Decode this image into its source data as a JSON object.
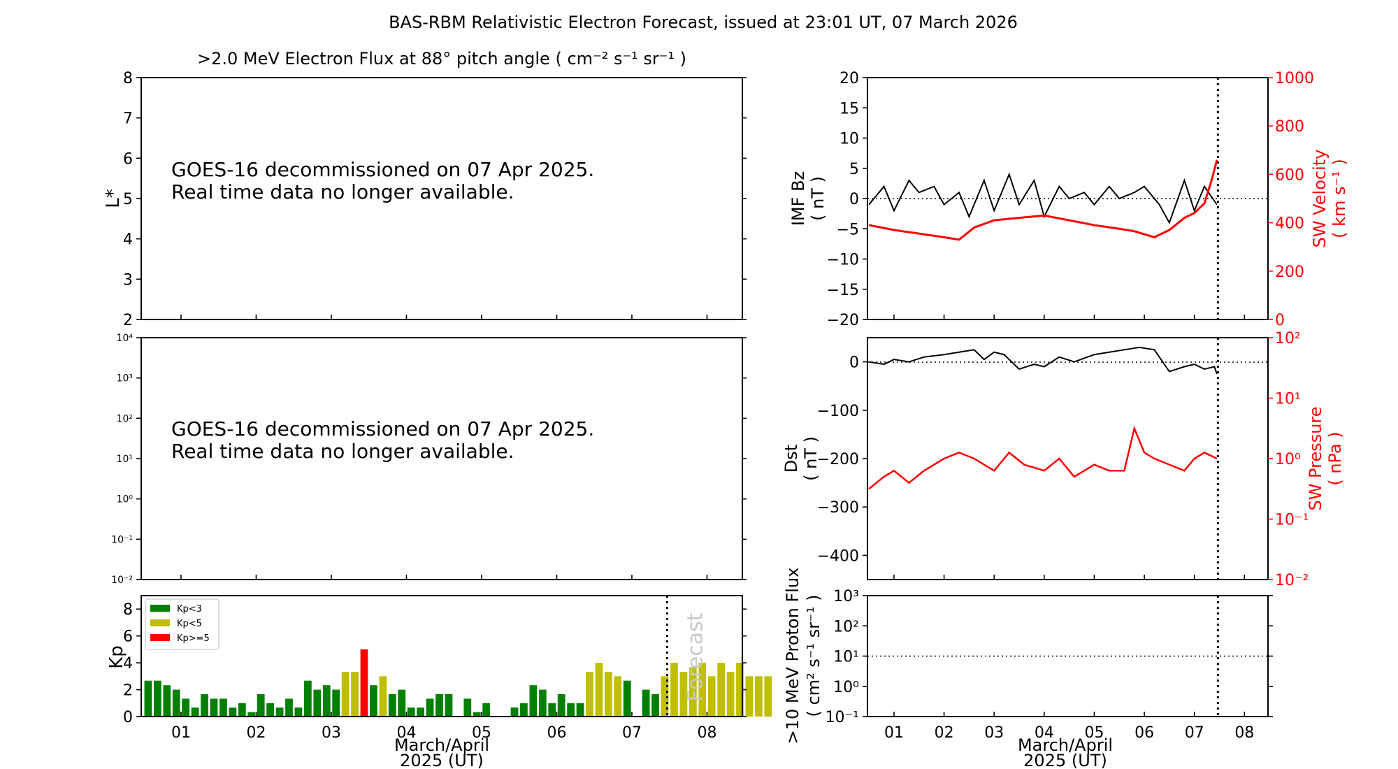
{
  "suptitle": "BAS-RBM Relativistic Electron Forecast, issued at 23:01 UT, 07 March 2026",
  "chart_data": [
    {
      "id": "electron-flux-lstar",
      "type": "heatmap",
      "title": ">2.0 MeV Electron Flux at 88° pitch angle ( cm⁻² s⁻¹ sr⁻¹ )",
      "ylabel": "L*",
      "ylim": [
        2,
        8
      ],
      "yticks": [
        "2",
        "3",
        "4",
        "5",
        "6",
        "7",
        "8"
      ],
      "notice": [
        "GOES-16 decommissioned on 07 Apr 2025.",
        "Real time data no longer available."
      ]
    },
    {
      "id": "electron-flux-log",
      "type": "line",
      "yscale": "log",
      "ylim_exponent": [
        -2,
        4
      ],
      "yticks": [
        "10⁻²",
        "10⁻¹",
        "10⁰",
        "10¹",
        "10²",
        "10³",
        "10⁴"
      ],
      "notice": [
        "GOES-16 decommissioned on 07 Apr 2025.",
        "Real time data no longer available."
      ]
    },
    {
      "id": "kp",
      "type": "bar",
      "ylabel": "Kp",
      "ylim": [
        0,
        9
      ],
      "yticks": [
        "0",
        "2",
        "4",
        "6",
        "8"
      ],
      "xlabel": [
        "March/April",
        "2025 (UT)"
      ],
      "xticks": [
        "01",
        "02",
        "03",
        "04",
        "05",
        "06",
        "07",
        "08"
      ],
      "forecast_label": "Forecast",
      "forecast_start_day": 7.47,
      "bar_start_day": 0.5,
      "bar_step_days": 0.125,
      "values": [
        2.67,
        2.67,
        2.33,
        2,
        1.33,
        0.67,
        1.67,
        1.33,
        1.33,
        0.67,
        1,
        0.33,
        1.67,
        1,
        0.67,
        1.33,
        0.67,
        2.67,
        2,
        2.33,
        2,
        3.33,
        3.33,
        5,
        2.33,
        3,
        1.67,
        2,
        0.67,
        0.67,
        1.33,
        1.67,
        1.67,
        0,
        1.33,
        0.33,
        1,
        0,
        0,
        0.67,
        1,
        2.33,
        2,
        1,
        1.67,
        1,
        1,
        3.33,
        4,
        3.33,
        3,
        2.67,
        0,
        2,
        1.67,
        3,
        4,
        3.33,
        3.67,
        4,
        3,
        4,
        3.33,
        4,
        3,
        3,
        3
      ],
      "legend": {
        "placement": "top-left",
        "entries": [
          {
            "label": "Kp<3",
            "color": "#008000"
          },
          {
            "label": "Kp<5",
            "color": "#bfbf00"
          },
          {
            "label": "Kp>=5",
            "color": "#ff0000"
          }
        ]
      }
    },
    {
      "id": "imf-bz-sw-velocity",
      "type": "line",
      "ylabel": [
        "IMF Bz",
        "( nT )"
      ],
      "ylim": [
        -20,
        20
      ],
      "yticks": [
        "−20",
        "−15",
        "−10",
        "−5",
        "0",
        "5",
        "10",
        "15",
        "20"
      ],
      "ylabel_right": [
        "SW Velocity",
        "( km s⁻¹ )"
      ],
      "ylim_right": [
        0,
        1000
      ],
      "yticks_right": [
        "0",
        "200",
        "400",
        "600",
        "800",
        "1000"
      ],
      "forecast_start_day": 7.47,
      "series": [
        {
          "name": "IMF Bz",
          "color": "#000000",
          "x": [
            0.5,
            0.8,
            1.0,
            1.3,
            1.5,
            1.8,
            2.0,
            2.3,
            2.5,
            2.8,
            3.0,
            3.3,
            3.5,
            3.8,
            4.0,
            4.3,
            4.5,
            4.8,
            5.0,
            5.3,
            5.5,
            5.8,
            6.0,
            6.3,
            6.5,
            6.8,
            7.0,
            7.2,
            7.45
          ],
          "y": [
            -1,
            2,
            -2,
            3,
            1,
            2,
            -1,
            1,
            -3,
            3,
            -2,
            4,
            -1,
            3,
            -3,
            2,
            0,
            1,
            -1,
            2,
            0,
            1,
            2,
            -1,
            -4,
            3,
            -2,
            2,
            -1
          ]
        },
        {
          "name": "SW Velocity",
          "color": "#ff0000",
          "x": [
            0.5,
            1.0,
            1.5,
            2.0,
            2.3,
            2.6,
            3.0,
            3.5,
            4.0,
            4.5,
            5.0,
            5.5,
            5.8,
            6.2,
            6.5,
            6.8,
            7.0,
            7.2,
            7.35,
            7.45
          ],
          "y": [
            390,
            370,
            355,
            340,
            330,
            380,
            410,
            420,
            430,
            410,
            390,
            375,
            365,
            340,
            370,
            420,
            440,
            480,
            580,
            660
          ]
        }
      ]
    },
    {
      "id": "dst-sw-pressure",
      "type": "line",
      "ylabel": [
        "Dst",
        "( nT )"
      ],
      "ylim": [
        -450,
        50
      ],
      "yticks": [
        "−400",
        "−300",
        "−200",
        "−100",
        "0"
      ],
      "ylabel_right": [
        "SW Pressure",
        "( nPa )"
      ],
      "ylim_right_exponent": [
        -2,
        2
      ],
      "yticks_right": [
        "10⁻²",
        "10⁻¹",
        "10⁰",
        "10¹",
        "10²"
      ],
      "forecast_start_day": 7.47,
      "series": [
        {
          "name": "Dst",
          "color": "#000000",
          "x": [
            0.5,
            0.8,
            1.0,
            1.3,
            1.6,
            2.0,
            2.3,
            2.6,
            2.8,
            3.0,
            3.2,
            3.5,
            3.8,
            4.0,
            4.3,
            4.6,
            5.0,
            5.3,
            5.6,
            5.9,
            6.2,
            6.5,
            6.8,
            7.0,
            7.2,
            7.4,
            7.45
          ],
          "y": [
            0,
            -5,
            5,
            0,
            10,
            15,
            20,
            25,
            5,
            20,
            15,
            -15,
            -5,
            -10,
            10,
            0,
            15,
            20,
            25,
            30,
            25,
            -20,
            -10,
            -5,
            -15,
            -10,
            -25
          ]
        },
        {
          "name": "SW Pressure",
          "color": "#ff0000",
          "x": [
            0.5,
            0.8,
            1.0,
            1.3,
            1.6,
            2.0,
            2.3,
            2.6,
            3.0,
            3.3,
            3.6,
            4.0,
            4.3,
            4.6,
            5.0,
            5.3,
            5.6,
            5.8,
            6.0,
            6.2,
            6.5,
            6.8,
            7.0,
            7.2,
            7.45
          ],
          "y": [
            -0.5,
            -0.3,
            -0.2,
            -0.4,
            -0.2,
            0.0,
            0.1,
            0.0,
            -0.2,
            0.1,
            -0.1,
            -0.2,
            0.0,
            -0.3,
            -0.1,
            -0.2,
            -0.2,
            0.5,
            0.1,
            0.0,
            -0.1,
            -0.2,
            0.0,
            0.1,
            0.0
          ]
        }
      ]
    },
    {
      "id": "proton-flux",
      "type": "line",
      "yscale": "log",
      "ylabel": [
        ">10 MeV Proton Flux",
        "( cm² s⁻¹ sr⁻¹ )"
      ],
      "ylim_exponent": [
        -1,
        3
      ],
      "yticks": [
        "10⁻¹",
        "10⁰",
        "10¹",
        "10²",
        "10³"
      ],
      "xlabel": [
        "March/April",
        "2025 (UT)"
      ],
      "xticks": [
        "01",
        "02",
        "03",
        "04",
        "05",
        "06",
        "07",
        "08"
      ],
      "threshold": 10,
      "forecast_start_day": 7.47
    }
  ]
}
